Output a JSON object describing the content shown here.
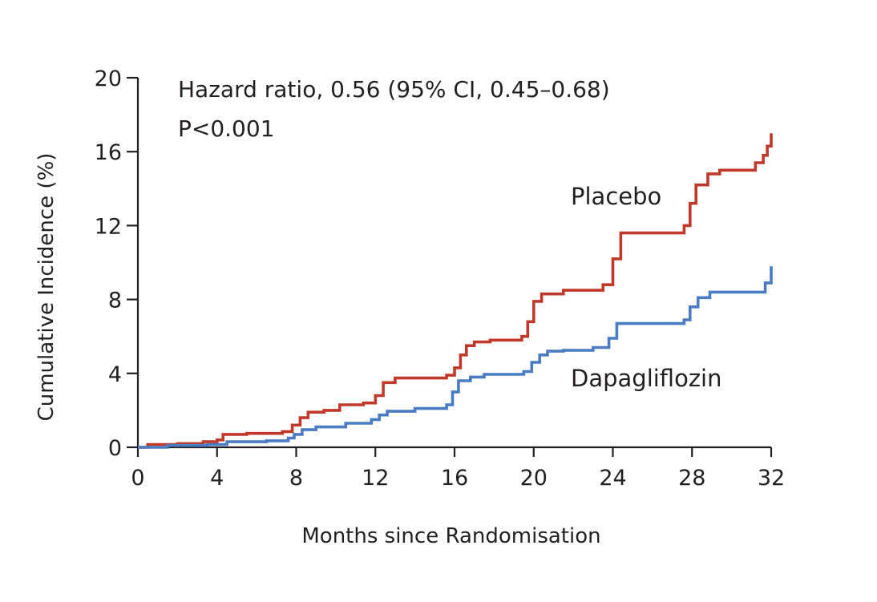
{
  "chart_data": {
    "type": "line",
    "title": "",
    "xlabel": "Months since Randomisation",
    "ylabel": "Cumulative Incidence (%)",
    "xlim": [
      0,
      32
    ],
    "ylim": [
      0,
      20
    ],
    "x_ticks": [
      0,
      4,
      8,
      12,
      16,
      20,
      24,
      28,
      32
    ],
    "y_ticks": [
      0,
      4,
      8,
      12,
      16,
      20
    ],
    "grid": false,
    "annotations": [
      "Hazard ratio, 0.56 (95% CI, 0.45–0.68)",
      "P<0.001"
    ],
    "series": [
      {
        "name": "Placebo",
        "color": "#c0392b",
        "x": [
          0,
          0.5,
          2,
          3.3,
          4,
          4.3,
          5.5,
          7.3,
          7.8,
          8.2,
          8.6,
          9.4,
          10.2,
          11.4,
          12.0,
          12.4,
          13.0,
          15.6,
          16.0,
          16.3,
          16.6,
          17.0,
          17.8,
          19.4,
          19.7,
          20.0,
          20.4,
          21.5,
          23.5,
          24.0,
          24.4,
          27.6,
          27.9,
          28.2,
          28.8,
          29.4,
          31.2,
          31.6,
          31.8,
          32.0
        ],
        "y": [
          0,
          0.15,
          0.2,
          0.3,
          0.4,
          0.7,
          0.75,
          0.85,
          1.2,
          1.6,
          1.9,
          2.0,
          2.3,
          2.4,
          2.8,
          3.5,
          3.75,
          3.9,
          4.3,
          5.0,
          5.5,
          5.7,
          5.8,
          6.0,
          6.8,
          7.9,
          8.3,
          8.5,
          8.8,
          10.2,
          11.6,
          12.0,
          13.2,
          14.2,
          14.8,
          15.0,
          15.4,
          15.8,
          16.3,
          17.0
        ]
      },
      {
        "name": "Dapagliflozin",
        "color": "#4a7cc4",
        "x": [
          0,
          1.5,
          3.5,
          4.5,
          6.5,
          7.6,
          7.9,
          8.3,
          9.0,
          10.5,
          11.8,
          12.2,
          12.6,
          14.0,
          15.6,
          15.9,
          16.2,
          16.8,
          17.5,
          19.5,
          19.9,
          20.3,
          20.7,
          21.5,
          23.0,
          23.8,
          24.2,
          27.6,
          27.9,
          28.3,
          28.9,
          31.7,
          32.0
        ],
        "y": [
          0,
          0.1,
          0.15,
          0.3,
          0.35,
          0.5,
          0.7,
          0.95,
          1.1,
          1.3,
          1.5,
          1.75,
          1.95,
          2.1,
          2.3,
          3.0,
          3.6,
          3.8,
          3.95,
          4.1,
          4.6,
          5.0,
          5.2,
          5.25,
          5.4,
          5.9,
          6.7,
          6.9,
          7.6,
          8.1,
          8.4,
          8.9,
          9.8
        ]
      }
    ]
  }
}
